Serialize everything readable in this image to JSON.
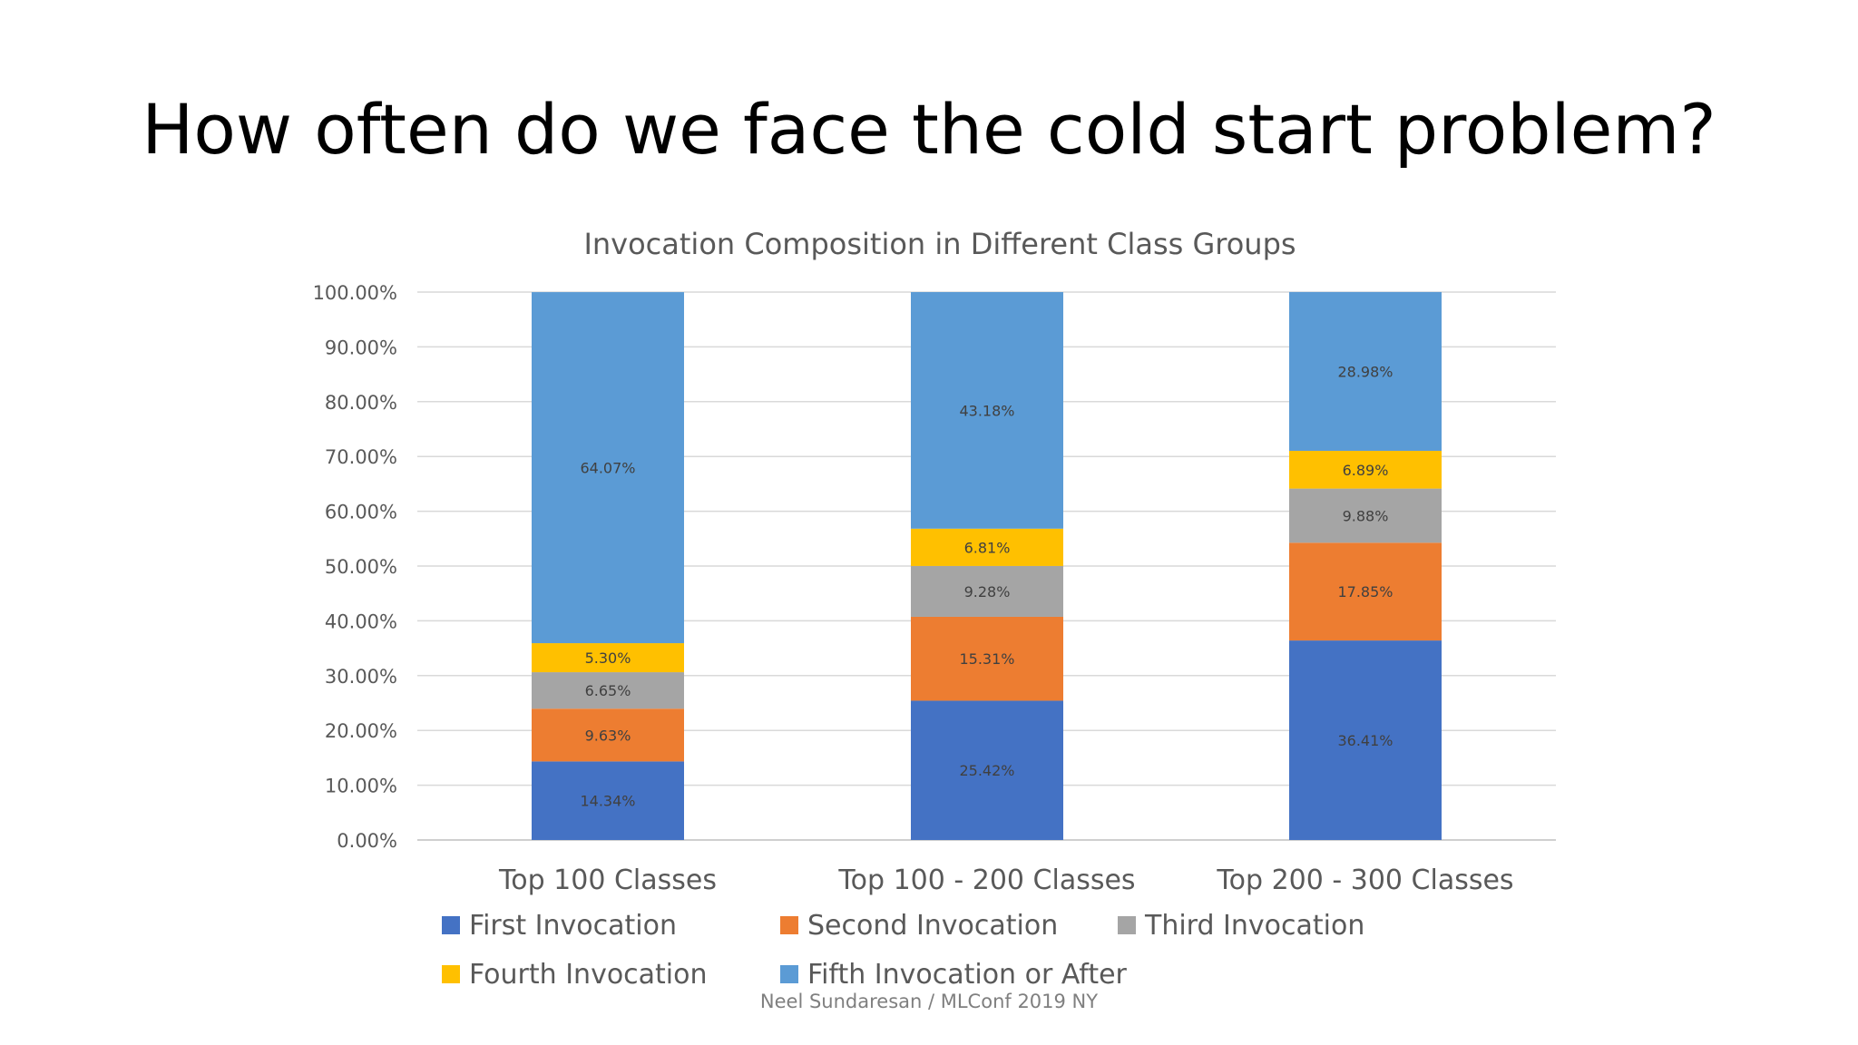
{
  "slide": {
    "title": "How often do we face the cold start problem?",
    "footer": "Neel Sundaresan / MLConf 2019 NY"
  },
  "chart_data": {
    "type": "bar",
    "stacked": true,
    "title": "Invocation Composition in Different Class Groups",
    "categories": [
      "Top 100 Classes",
      "Top 100 - 200 Classes",
      "Top 200 - 300 Classes"
    ],
    "ylim": [
      0,
      100
    ],
    "yticks": [
      "0.00%",
      "10.00%",
      "20.00%",
      "30.00%",
      "40.00%",
      "50.00%",
      "60.00%",
      "70.00%",
      "80.00%",
      "90.00%",
      "100.00%"
    ],
    "grid": true,
    "legend_position": "bottom",
    "series": [
      {
        "name": "First Invocation",
        "color": "#4472C4",
        "values": [
          14.34,
          25.42,
          36.41
        ],
        "labels": [
          "14.34%",
          "25.42%",
          "36.41%"
        ]
      },
      {
        "name": "Second Invocation",
        "color": "#ED7D31",
        "values": [
          9.63,
          15.31,
          17.85
        ],
        "labels": [
          "9.63%",
          "15.31%",
          "17.85%"
        ]
      },
      {
        "name": "Third Invocation",
        "color": "#A5A5A5",
        "values": [
          6.65,
          9.28,
          9.88
        ],
        "labels": [
          "6.65%",
          "9.28%",
          "9.88%"
        ]
      },
      {
        "name": "Fourth Invocation",
        "color": "#FFC000",
        "values": [
          5.3,
          6.81,
          6.89
        ],
        "labels": [
          "5.30%",
          "6.81%",
          "6.89%"
        ]
      },
      {
        "name": "Fifth Invocation or After",
        "color": "#5B9BD5",
        "values": [
          64.07,
          43.18,
          28.98
        ],
        "labels": [
          "64.07%",
          "43.18%",
          "28.98%"
        ]
      }
    ]
  }
}
